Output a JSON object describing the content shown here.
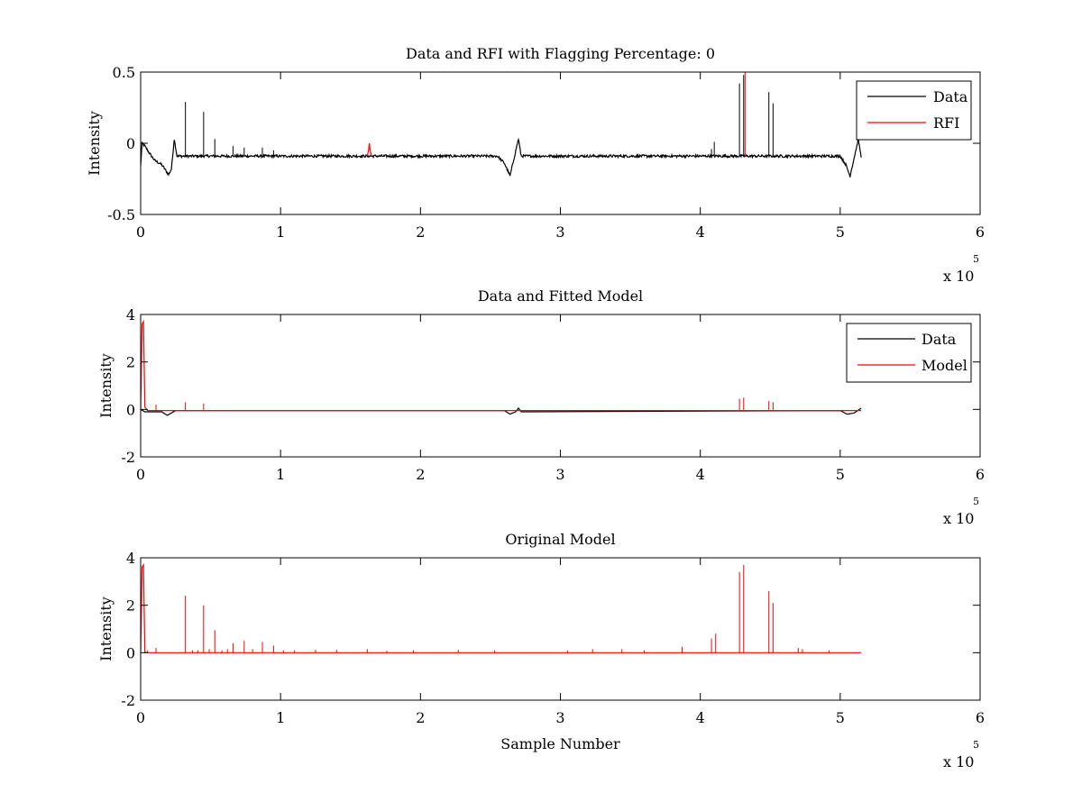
{
  "chart_data": [
    {
      "type": "line",
      "title": "Data and RFI with Flagging Percentage: 0",
      "xlabel": "",
      "ylabel": "Intensity",
      "xlim": [
        0,
        6
      ],
      "ylim": [
        -0.5,
        0.5
      ],
      "x_ticks": [
        "0",
        "1",
        "2",
        "3",
        "4",
        "5",
        "6"
      ],
      "y_ticks": [
        "-0.5",
        "0",
        "0.5"
      ],
      "x_multiplier": {
        "base": "x 10",
        "exponent": "5"
      },
      "legend": {
        "position": "top-right",
        "entries": [
          "Data",
          "RFI"
        ]
      },
      "series": [
        {
          "name": "Data",
          "color": "#000000",
          "baseline": -0.09,
          "points": [
            [
              0.0,
              -0.16
            ],
            [
              0.01,
              0.0
            ],
            [
              0.03,
              -0.02
            ],
            [
              0.07,
              -0.08
            ],
            [
              0.1,
              -0.12
            ],
            [
              0.15,
              -0.15
            ],
            [
              0.2,
              -0.22
            ],
            [
              0.22,
              -0.18
            ],
            [
              0.24,
              0.03
            ],
            [
              0.26,
              -0.09
            ],
            [
              2.55,
              -0.09
            ],
            [
              2.6,
              -0.14
            ],
            [
              2.64,
              -0.23
            ],
            [
              2.67,
              -0.1
            ],
            [
              2.7,
              0.03
            ],
            [
              2.72,
              -0.09
            ],
            [
              5.0,
              -0.09
            ],
            [
              5.04,
              -0.15
            ],
            [
              5.07,
              -0.23
            ],
            [
              5.1,
              -0.1
            ],
            [
              5.13,
              0.03
            ],
            [
              5.15,
              -0.1
            ]
          ],
          "spikes": [
            [
              0.32,
              0.29
            ],
            [
              0.45,
              0.22
            ],
            [
              0.53,
              0.03
            ],
            [
              0.66,
              -0.02
            ],
            [
              0.74,
              -0.03
            ],
            [
              0.87,
              -0.03
            ],
            [
              0.95,
              -0.05
            ],
            [
              4.08,
              -0.04
            ],
            [
              4.1,
              0.01
            ],
            [
              4.28,
              0.42
            ],
            [
              4.31,
              0.48
            ],
            [
              4.49,
              0.36
            ],
            [
              4.52,
              0.28
            ]
          ]
        },
        {
          "name": "RFI",
          "color": "#ff0000",
          "points": [
            [
              1.62,
              -0.09
            ],
            [
              1.63,
              -0.04
            ],
            [
              1.635,
              -0.0
            ],
            [
              1.64,
              -0.05
            ],
            [
              1.65,
              -0.09
            ]
          ],
          "spikes": [
            [
              4.32,
              0.5
            ]
          ]
        }
      ]
    },
    {
      "type": "line",
      "title": "Data and Fitted Model",
      "xlabel": "",
      "ylabel": "Intensity",
      "xlim": [
        0,
        6
      ],
      "ylim": [
        -2,
        4
      ],
      "x_ticks": [
        "0",
        "1",
        "2",
        "3",
        "4",
        "5",
        "6"
      ],
      "y_ticks": [
        "-2",
        "0",
        "2",
        "4"
      ],
      "x_multiplier": {
        "base": "x 10",
        "exponent": "5"
      },
      "legend": {
        "position": "top-right",
        "entries": [
          "Data",
          "Model"
        ]
      },
      "series": [
        {
          "name": "Data",
          "color": "#000000",
          "points": [
            [
              0.0,
              0.0
            ],
            [
              0.03,
              -0.1
            ],
            [
              0.15,
              -0.1
            ],
            [
              0.19,
              -0.25
            ],
            [
              0.22,
              -0.15
            ],
            [
              0.25,
              -0.05
            ],
            [
              2.6,
              -0.05
            ],
            [
              2.64,
              -0.2
            ],
            [
              2.68,
              -0.1
            ],
            [
              2.7,
              0.05
            ],
            [
              2.72,
              -0.1
            ],
            [
              5.0,
              -0.05
            ],
            [
              5.05,
              -0.2
            ],
            [
              5.1,
              -0.15
            ],
            [
              5.15,
              0.05
            ]
          ]
        },
        {
          "name": "Model",
          "color": "#ff0000",
          "points": [
            [
              0.0,
              0.0
            ],
            [
              0.01,
              3.6
            ],
            [
              0.02,
              3.7
            ],
            [
              0.03,
              0.1
            ],
            [
              0.05,
              -0.05
            ],
            [
              5.15,
              -0.05
            ]
          ],
          "spikes": [
            [
              0.11,
              0.2
            ],
            [
              0.32,
              0.3
            ],
            [
              0.45,
              0.25
            ],
            [
              4.28,
              0.45
            ],
            [
              4.31,
              0.5
            ],
            [
              4.49,
              0.35
            ],
            [
              4.52,
              0.3
            ]
          ]
        }
      ]
    },
    {
      "type": "line",
      "title": "Original Model",
      "xlabel": "Sample Number",
      "ylabel": "Intensity",
      "xlim": [
        0,
        6
      ],
      "ylim": [
        -2,
        4
      ],
      "x_ticks": [
        "0",
        "1",
        "2",
        "3",
        "4",
        "5",
        "6"
      ],
      "y_ticks": [
        "-2",
        "0",
        "2",
        "4"
      ],
      "x_multiplier": {
        "base": "x 10",
        "exponent": "5"
      },
      "series": [
        {
          "name": "Model",
          "color": "#ff0000",
          "points": [
            [
              0.0,
              0.0
            ],
            [
              0.01,
              3.6
            ],
            [
              0.02,
              3.7
            ],
            [
              0.03,
              0.0
            ],
            [
              5.15,
              0.0
            ]
          ],
          "spikes": [
            [
              0.05,
              0.1
            ],
            [
              0.11,
              0.2
            ],
            [
              0.32,
              2.4
            ],
            [
              0.37,
              0.1
            ],
            [
              0.41,
              0.1
            ],
            [
              0.45,
              2.0
            ],
            [
              0.49,
              0.15
            ],
            [
              0.53,
              0.95
            ],
            [
              0.58,
              0.1
            ],
            [
              0.62,
              0.15
            ],
            [
              0.66,
              0.4
            ],
            [
              0.74,
              0.5
            ],
            [
              0.8,
              0.15
            ],
            [
              0.87,
              0.45
            ],
            [
              0.95,
              0.3
            ],
            [
              1.02,
              0.1
            ],
            [
              1.1,
              0.1
            ],
            [
              1.25,
              0.12
            ],
            [
              1.4,
              0.12
            ],
            [
              1.62,
              0.15
            ],
            [
              1.76,
              0.08
            ],
            [
              1.95,
              0.1
            ],
            [
              2.27,
              0.12
            ],
            [
              2.53,
              0.1
            ],
            [
              3.05,
              0.1
            ],
            [
              3.23,
              0.15
            ],
            [
              3.44,
              0.15
            ],
            [
              3.6,
              0.1
            ],
            [
              3.87,
              0.25
            ],
            [
              4.08,
              0.6
            ],
            [
              4.11,
              0.8
            ],
            [
              4.28,
              3.4
            ],
            [
              4.31,
              3.7
            ],
            [
              4.49,
              2.6
            ],
            [
              4.52,
              2.1
            ],
            [
              4.7,
              0.2
            ],
            [
              4.73,
              0.15
            ],
            [
              4.92,
              0.1
            ]
          ]
        }
      ]
    }
  ]
}
